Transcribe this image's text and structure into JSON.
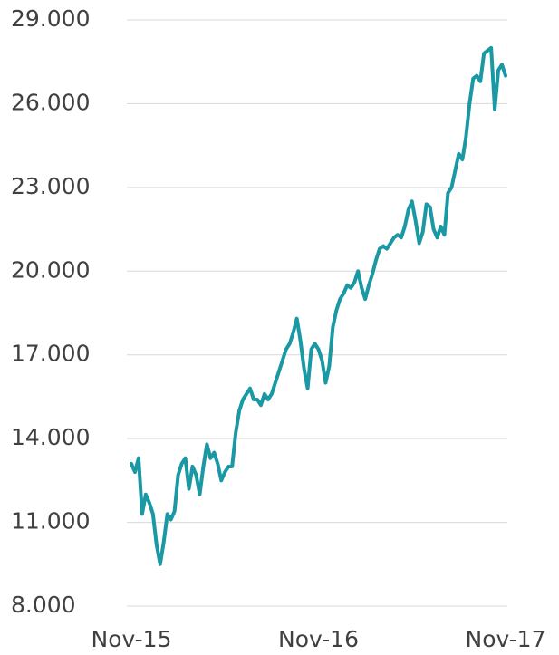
{
  "chart_data": {
    "type": "line",
    "categories": [
      "Nov-15",
      null,
      null,
      null,
      null,
      null,
      null,
      null,
      null,
      null,
      null,
      null,
      null,
      null,
      null,
      null,
      null,
      null,
      null,
      null,
      null,
      null,
      null,
      null,
      null,
      null,
      null,
      null,
      null,
      null,
      null,
      null,
      null,
      null,
      null,
      null,
      null,
      null,
      null,
      null,
      null,
      null,
      null,
      null,
      null,
      null,
      null,
      null,
      null,
      null,
      null,
      null,
      "Nov-16",
      null,
      null,
      null,
      null,
      null,
      null,
      null,
      null,
      null,
      null,
      null,
      null,
      null,
      null,
      null,
      null,
      null,
      null,
      null,
      null,
      null,
      null,
      null,
      null,
      null,
      null,
      null,
      null,
      null,
      null,
      null,
      null,
      null,
      null,
      null,
      null,
      null,
      null,
      null,
      null,
      null,
      null,
      null,
      null,
      null,
      null,
      null,
      null,
      null,
      null,
      null,
      "Nov-17"
    ],
    "values": [
      13100,
      12800,
      13300,
      11300,
      12000,
      11700,
      11300,
      10200,
      9500,
      10300,
      11300,
      11100,
      11400,
      12700,
      13100,
      13300,
      12200,
      13000,
      12700,
      12000,
      13000,
      13800,
      13300,
      13500,
      13100,
      12500,
      12800,
      13000,
      13000,
      14200,
      15000,
      15400,
      15600,
      15800,
      15400,
      15400,
      15200,
      15600,
      15400,
      15600,
      16000,
      16400,
      16800,
      17200,
      17400,
      17800,
      18300,
      17500,
      16500,
      15800,
      17200,
      17400,
      17200,
      16800,
      16000,
      16600,
      18000,
      18600,
      19000,
      19200,
      19500,
      19400,
      19600,
      20000,
      19400,
      19000,
      19500,
      19900,
      20400,
      20800,
      20900,
      20800,
      21000,
      21200,
      21300,
      21200,
      21600,
      22200,
      22500,
      21800,
      21000,
      21400,
      22400,
      22300,
      21500,
      21200,
      21600,
      21300,
      22800,
      23000,
      23600,
      24200,
      24000,
      24800,
      26000,
      26900,
      27000,
      26800,
      27800,
      27900,
      28000,
      25800,
      27200,
      27400,
      27000
    ],
    "color": "#1a98a3",
    "ylim": [
      8000,
      29000
    ],
    "yticks": [
      {
        "value": 8000,
        "label": "8.000"
      },
      {
        "value": 11000,
        "label": "11.000"
      },
      {
        "value": 14000,
        "label": "14.000"
      },
      {
        "value": 17000,
        "label": "17.000"
      },
      {
        "value": 20000,
        "label": "20.000"
      },
      {
        "value": 23000,
        "label": "23.000"
      },
      {
        "value": 26000,
        "label": "26.000"
      },
      {
        "value": 29000,
        "label": "29.000"
      }
    ],
    "grid": true
  }
}
